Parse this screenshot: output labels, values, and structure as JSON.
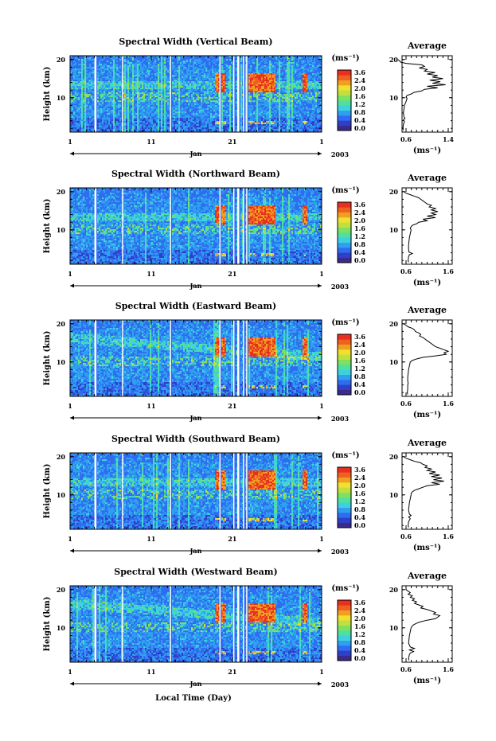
{
  "figure": {
    "xlabel": "Local Time (Day)",
    "month_label": "Jan",
    "year_label": "2003",
    "ylabel": "Height (km)",
    "x_ticks": [
      "1",
      "11",
      "21",
      "1"
    ],
    "y_ticks": [
      "20",
      "10"
    ],
    "colorbar_unit": "(ms⁻¹)",
    "colorbar_ticks": [
      "3.6",
      "2.4",
      "2.0",
      "1.6",
      "1.2",
      "0.8",
      "0.4",
      "0.0"
    ],
    "profile_title": "Average",
    "profile_xlabel": "(ms⁻¹)",
    "colors": {
      "scale": [
        "#3a2a8c",
        "#2f3fc8",
        "#2f6cf0",
        "#2fa0f0",
        "#3fd0e0",
        "#4fe0a0",
        "#80e060",
        "#c0e040",
        "#f0e030",
        "#f0a020",
        "#f06020",
        "#e83020"
      ]
    }
  },
  "chart_data": [
    {
      "type": "heatmap",
      "title": "Spectral Width (Vertical Beam)",
      "profile_x_ticks": [
        "0.6",
        "1.4"
      ],
      "profile": [
        [
          20,
          0.45
        ],
        [
          19.3,
          0.5
        ],
        [
          19,
          0.6
        ],
        [
          18.6,
          0.9
        ],
        [
          18.2,
          0.95
        ],
        [
          17.8,
          0.85
        ],
        [
          17.4,
          1.0
        ],
        [
          17,
          0.95
        ],
        [
          16.6,
          1.15
        ],
        [
          16.2,
          1.0
        ],
        [
          15.8,
          1.2
        ],
        [
          15.4,
          1.1
        ],
        [
          15,
          1.3
        ],
        [
          14.6,
          1.05
        ],
        [
          14.2,
          1.25
        ],
        [
          13.8,
          1.1
        ],
        [
          13.4,
          1.35
        ],
        [
          13,
          1.0
        ],
        [
          12.6,
          1.2
        ],
        [
          12.2,
          0.95
        ],
        [
          11.8,
          0.9
        ],
        [
          11.4,
          0.75
        ],
        [
          11,
          0.7
        ],
        [
          10.6,
          0.62
        ],
        [
          10.2,
          0.6
        ],
        [
          9.8,
          0.62
        ],
        [
          9,
          0.6
        ],
        [
          8,
          0.57
        ],
        [
          7,
          0.56
        ],
        [
          6,
          0.55
        ],
        [
          5,
          0.56
        ],
        [
          4.6,
          0.58
        ],
        [
          4.2,
          0.55
        ],
        [
          3.8,
          0.57
        ],
        [
          3,
          0.55
        ],
        [
          2,
          0.54
        ],
        [
          1.5,
          0.55
        ]
      ]
    },
    {
      "type": "heatmap",
      "title": "Spectral Width (Northward Beam)",
      "profile_x_ticks": [
        "0.6",
        "1.6"
      ],
      "profile": [
        [
          20,
          0.55
        ],
        [
          19.6,
          0.6
        ],
        [
          19.2,
          0.7
        ],
        [
          18.8,
          0.8
        ],
        [
          18.4,
          0.9
        ],
        [
          18,
          0.95
        ],
        [
          17.6,
          1.0
        ],
        [
          17.2,
          1.05
        ],
        [
          16.8,
          1.1
        ],
        [
          16.4,
          1.2
        ],
        [
          16,
          1.15
        ],
        [
          15.6,
          1.3
        ],
        [
          15.2,
          1.2
        ],
        [
          14.8,
          1.35
        ],
        [
          14.4,
          1.2
        ],
        [
          14,
          1.3
        ],
        [
          13.6,
          1.1
        ],
        [
          13.2,
          1.3
        ],
        [
          12.8,
          1.0
        ],
        [
          12.4,
          1.1
        ],
        [
          12,
          0.9
        ],
        [
          11.6,
          0.85
        ],
        [
          11.2,
          0.75
        ],
        [
          10.8,
          0.72
        ],
        [
          10.4,
          0.7
        ],
        [
          10,
          0.72
        ],
        [
          9,
          0.7
        ],
        [
          8,
          0.68
        ],
        [
          7,
          0.67
        ],
        [
          6,
          0.66
        ],
        [
          5,
          0.66
        ],
        [
          4.2,
          0.67
        ],
        [
          3.8,
          0.75
        ],
        [
          3.5,
          0.68
        ],
        [
          3,
          0.66
        ],
        [
          2,
          0.65
        ],
        [
          1.5,
          0.66
        ]
      ]
    },
    {
      "type": "heatmap",
      "title": "Spectral Width (Eastward Beam)",
      "profile_x_ticks": [
        "0.6",
        "1.6"
      ],
      "profile": [
        [
          20,
          0.55
        ],
        [
          19.6,
          0.6
        ],
        [
          19.2,
          0.65
        ],
        [
          18.8,
          0.75
        ],
        [
          18.4,
          0.8
        ],
        [
          18,
          0.82
        ],
        [
          17.6,
          0.9
        ],
        [
          17.2,
          0.95
        ],
        [
          16.8,
          0.92
        ],
        [
          16.4,
          1.0
        ],
        [
          16,
          1.05
        ],
        [
          15.6,
          1.1
        ],
        [
          15.2,
          1.15
        ],
        [
          14.8,
          1.2
        ],
        [
          14.4,
          1.25
        ],
        [
          14,
          1.3
        ],
        [
          13.6,
          1.4
        ],
        [
          13.2,
          1.5
        ],
        [
          12.8,
          1.6
        ],
        [
          12.4,
          1.5
        ],
        [
          12,
          1.55
        ],
        [
          11.6,
          1.3
        ],
        [
          11.2,
          1.0
        ],
        [
          10.8,
          0.85
        ],
        [
          10.4,
          0.75
        ],
        [
          10,
          0.7
        ],
        [
          9,
          0.68
        ],
        [
          8,
          0.66
        ],
        [
          7,
          0.65
        ],
        [
          6,
          0.64
        ],
        [
          5,
          0.64
        ],
        [
          4.4,
          0.65
        ],
        [
          4,
          0.64
        ],
        [
          3,
          0.64
        ],
        [
          2,
          0.63
        ],
        [
          1.5,
          0.64
        ]
      ]
    },
    {
      "type": "heatmap",
      "title": "Spectral Width (Southward Beam)",
      "profile_x_ticks": [
        "0.6",
        "1.6"
      ],
      "profile": [
        [
          20,
          0.55
        ],
        [
          19.6,
          0.6
        ],
        [
          19.2,
          0.7
        ],
        [
          18.8,
          0.8
        ],
        [
          18.4,
          0.95
        ],
        [
          18,
          1.0
        ],
        [
          17.6,
          1.1
        ],
        [
          17.2,
          1.05
        ],
        [
          16.8,
          1.2
        ],
        [
          16.4,
          1.1
        ],
        [
          16,
          1.3
        ],
        [
          15.6,
          1.15
        ],
        [
          15.2,
          1.4
        ],
        [
          14.8,
          1.2
        ],
        [
          14.4,
          1.45
        ],
        [
          14,
          1.25
        ],
        [
          13.6,
          1.5
        ],
        [
          13.2,
          1.2
        ],
        [
          12.8,
          1.4
        ],
        [
          12.4,
          1.1
        ],
        [
          12,
          1.0
        ],
        [
          11.6,
          0.9
        ],
        [
          11.2,
          0.8
        ],
        [
          10.8,
          0.75
        ],
        [
          10.4,
          0.72
        ],
        [
          10,
          0.72
        ],
        [
          9,
          0.7
        ],
        [
          8,
          0.68
        ],
        [
          7,
          0.67
        ],
        [
          6,
          0.66
        ],
        [
          5,
          0.68
        ],
        [
          4.6,
          0.72
        ],
        [
          4.2,
          0.66
        ],
        [
          3.8,
          0.7
        ],
        [
          3,
          0.66
        ],
        [
          2,
          0.65
        ],
        [
          1.5,
          0.66
        ]
      ]
    },
    {
      "type": "heatmap",
      "title": "Spectral Width (Westward Beam)",
      "profile_x_ticks": [
        "0.6",
        "1.6"
      ],
      "profile": [
        [
          20,
          0.6
        ],
        [
          19.6,
          0.65
        ],
        [
          19.2,
          0.7
        ],
        [
          18.8,
          0.65
        ],
        [
          18.4,
          0.75
        ],
        [
          18,
          0.7
        ],
        [
          17.6,
          0.8
        ],
        [
          17.2,
          0.75
        ],
        [
          16.8,
          0.85
        ],
        [
          16.4,
          0.8
        ],
        [
          16,
          0.9
        ],
        [
          15.6,
          1.0
        ],
        [
          15.2,
          0.95
        ],
        [
          14.8,
          1.1
        ],
        [
          14.4,
          1.2
        ],
        [
          14,
          1.3
        ],
        [
          13.6,
          1.25
        ],
        [
          13.2,
          1.4
        ],
        [
          12.8,
          1.35
        ],
        [
          12.4,
          1.3
        ],
        [
          12,
          1.1
        ],
        [
          11.6,
          0.95
        ],
        [
          11.2,
          0.85
        ],
        [
          10.8,
          0.78
        ],
        [
          10.4,
          0.74
        ],
        [
          10,
          0.72
        ],
        [
          9,
          0.7
        ],
        [
          8,
          0.68
        ],
        [
          7,
          0.67
        ],
        [
          6,
          0.66
        ],
        [
          5,
          0.7
        ],
        [
          4.6,
          0.8
        ],
        [
          4.2,
          0.68
        ],
        [
          3.8,
          0.78
        ],
        [
          3.4,
          0.7
        ],
        [
          3,
          0.68
        ],
        [
          2,
          0.66
        ],
        [
          1.5,
          0.67
        ]
      ]
    }
  ]
}
